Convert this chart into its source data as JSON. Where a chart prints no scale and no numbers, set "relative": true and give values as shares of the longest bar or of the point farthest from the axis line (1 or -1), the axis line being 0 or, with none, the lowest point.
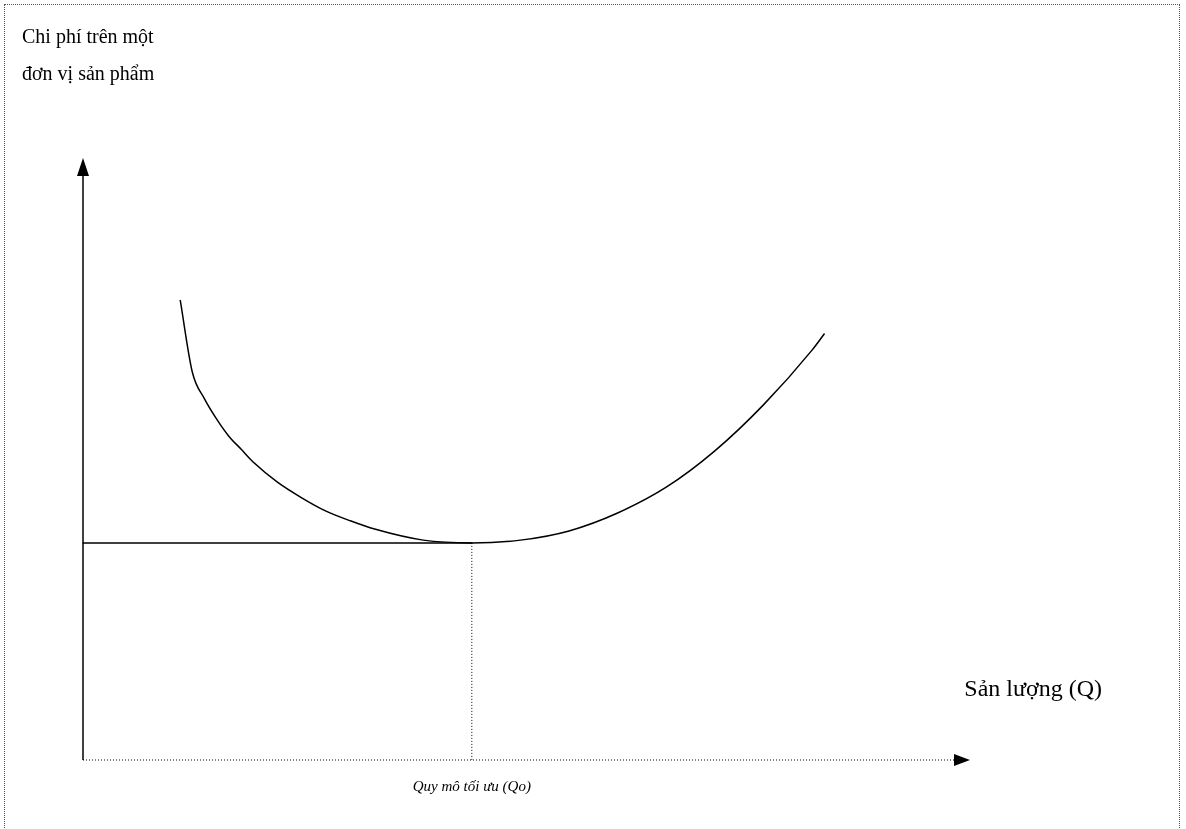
{
  "chart_data": {
    "type": "line",
    "relative": true,
    "xlabel": "Sản lượng (Q)",
    "annotations": [
      "Chi phí trên một\nđơn vị sản phẩm",
      "Quy mô tối ưu (Qo)"
    ],
    "tick_labels": false,
    "marker": "none",
    "line_style": "solid",
    "categories": [
      null,
      null,
      null,
      null,
      null,
      null,
      null,
      null,
      null,
      null,
      null,
      null,
      null,
      null,
      null,
      null,
      null,
      null,
      null,
      null,
      null,
      null,
      null,
      null,
      null,
      null,
      null,
      null,
      null,
      null,
      null,
      null,
      null,
      null,
      null,
      null,
      null,
      null,
      null,
      null,
      null,
      null,
      null,
      null,
      null,
      null,
      null,
      null,
      null,
      null,
      null,
      null,
      null,
      null,
      null,
      null,
      null,
      null,
      null,
      null,
      null,
      null,
      null,
      null,
      null,
      null,
      null,
      null,
      null,
      null,
      null,
      null,
      null,
      null
    ],
    "series": [
      {
        "color": "#000000",
        "values": [
          null,
          null,
          null,
          null,
          null,
          null,
          null,
          null,
          1,
          0.843,
          0.785,
          0.741,
          0.704,
          0.676,
          0.648,
          null,
          0.604,
          null,
          0.57,
          null,
          0.541,
          null,
          0.52,
          null,
          0.502,
          null,
          null,
          null,
          0.478,
          null,
          null,
          null,
          0.472,
          null,
          null,
          null,
          0.478,
          null,
          null,
          null,
          0.498,
          null,
          null,
          null,
          0.537,
          null,
          null,
          null,
          0.593,
          null,
          null,
          null,
          0.672,
          null,
          null,
          null,
          0.772,
          null,
          null,
          null,
          0.891,
          0.926,
          null,
          null,
          null,
          null,
          null,
          null,
          null,
          null,
          null,
          null,
          null,
          null
        ]
      },
      {
        "color": "#000000",
        "values": [
          0.472,
          null,
          null,
          null,
          null,
          null,
          null,
          null,
          null,
          null,
          null,
          null,
          null,
          null,
          null,
          null,
          null,
          null,
          null,
          null,
          null,
          null,
          null,
          null,
          null,
          null,
          null,
          null,
          null,
          null,
          null,
          null,
          0.472,
          null,
          null,
          null,
          null,
          null,
          null,
          null,
          null,
          null,
          null,
          null,
          null,
          null,
          null,
          null,
          null,
          null,
          null,
          null,
          null,
          null,
          null,
          null,
          null,
          null,
          null,
          null,
          null,
          null,
          null,
          null,
          null,
          null,
          null,
          null,
          null,
          null,
          null,
          null,
          null,
          null
        ]
      }
    ]
  }
}
